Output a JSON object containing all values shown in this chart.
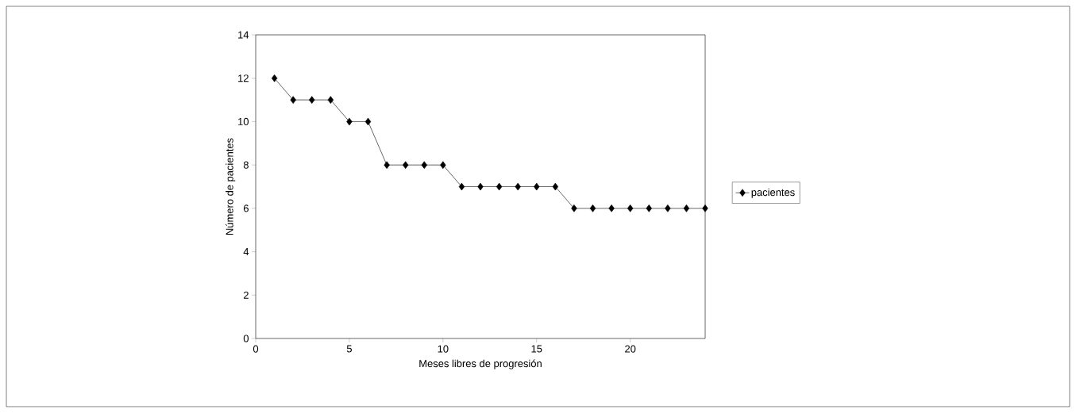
{
  "chart_data": {
    "type": "line",
    "xlabel": "Meses libres de progresión",
    "ylabel": "Número de pacientes",
    "x": [
      1,
      2,
      3,
      4,
      5,
      6,
      7,
      8,
      9,
      10,
      11,
      12,
      13,
      14,
      15,
      16,
      17,
      18,
      19,
      20,
      21,
      22,
      23,
      24
    ],
    "series": [
      {
        "name": "pacientes",
        "color": "#000000",
        "values": [
          12,
          11,
          11,
          11,
          10,
          10,
          8,
          8,
          8,
          8,
          7,
          7,
          7,
          7,
          7,
          7,
          6,
          6,
          6,
          6,
          6,
          6,
          6,
          6
        ]
      }
    ],
    "xlim": [
      0,
      24
    ],
    "ylim": [
      0,
      14
    ],
    "xticks": [
      0,
      5,
      10,
      15,
      20
    ],
    "yticks": [
      0,
      2,
      4,
      6,
      8,
      10,
      12,
      14
    ],
    "marker": "diamond",
    "line_style": "solid",
    "legend": "right"
  }
}
